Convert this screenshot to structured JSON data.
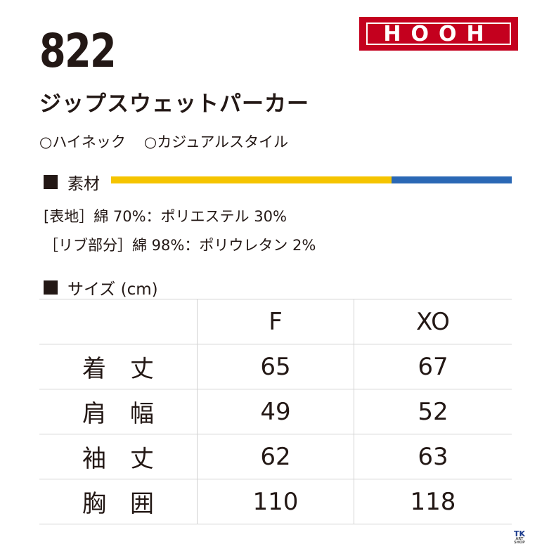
{
  "model_number": "822",
  "brand": "HOOH",
  "product_name": "ジップスウェットパーカー",
  "features": [
    "○ハイネック",
    "○カジュアルスタイル"
  ],
  "material": {
    "heading": "素材",
    "lines": [
      "[表地］綿 70%：ポリエステル 30%",
      "［リブ部分］綿 98%：ポリウレタン 2%"
    ],
    "colors": {
      "primary": "#f5c400",
      "secondary": "#2a68b5"
    }
  },
  "size": {
    "heading": "サイズ (cm)",
    "columns": [
      "",
      "F",
      "XO"
    ],
    "rows": [
      {
        "label": "着丈",
        "values": [
          "65",
          "67"
        ]
      },
      {
        "label": "肩幅",
        "values": [
          "49",
          "52"
        ]
      },
      {
        "label": "袖丈",
        "values": [
          "62",
          "63"
        ]
      },
      {
        "label": "胸囲",
        "values": [
          "110",
          "118"
        ]
      }
    ]
  },
  "shop_logo": {
    "text": "TK",
    "subtext": "ART SHOP"
  },
  "colors": {
    "brand_red": "#c4001e",
    "text": "#231815"
  }
}
